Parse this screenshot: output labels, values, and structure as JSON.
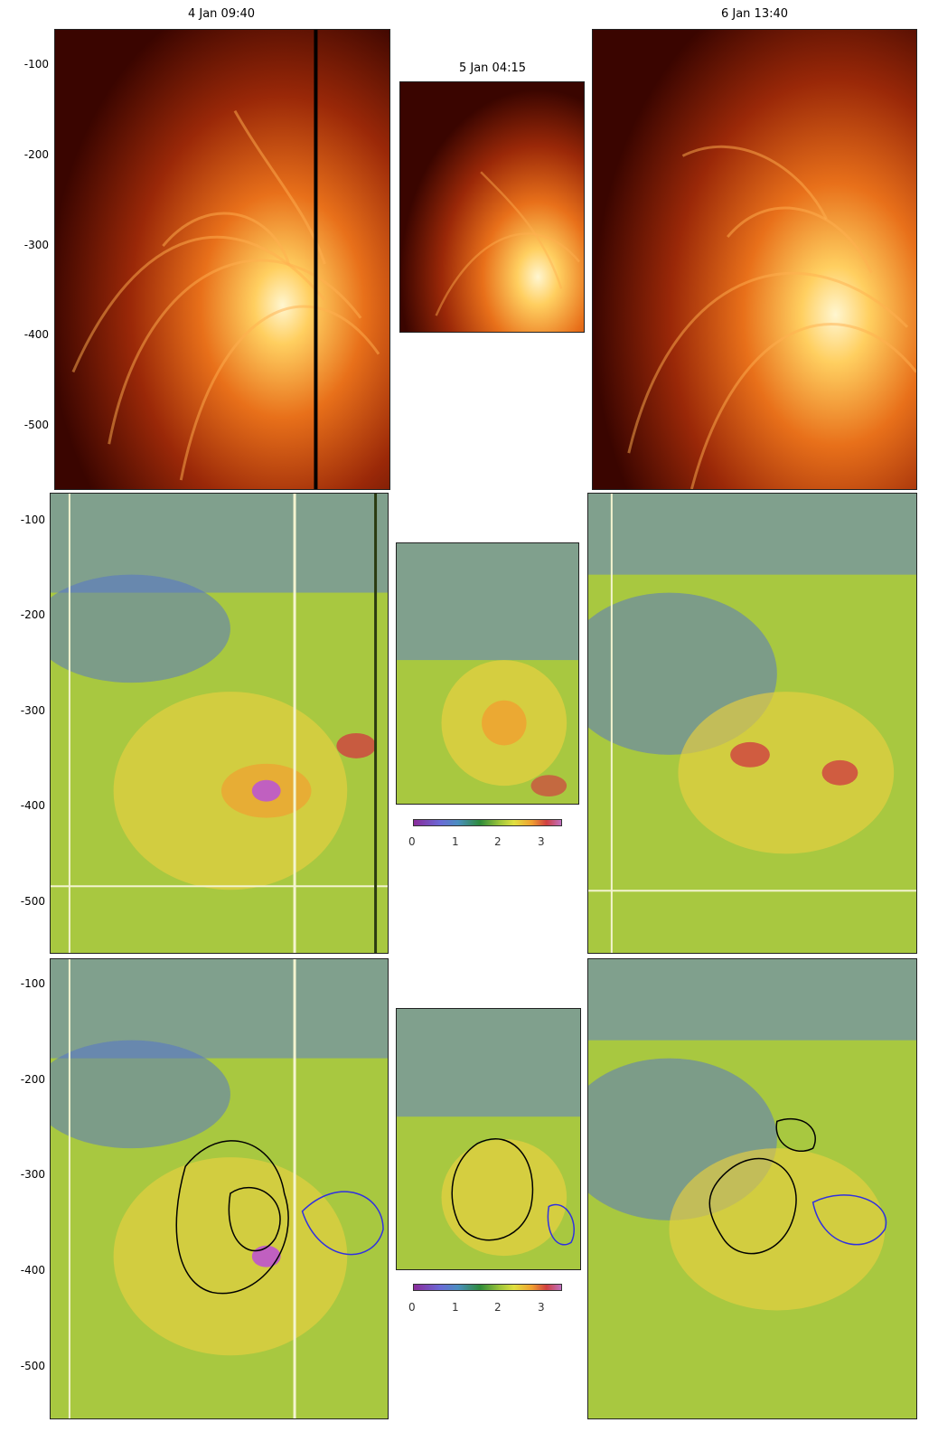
{
  "titles": {
    "left": "4 Jan 09:40",
    "middle": "5 Jan 04:15",
    "right": "6 Jan 13:40"
  },
  "y_ticks": {
    "row1": [
      "-100",
      "-200",
      "-300",
      "-400",
      "-500"
    ],
    "row2": [
      "-100",
      "-200",
      "-300",
      "-400",
      "-500"
    ],
    "row3": [
      "-100",
      "-200",
      "-300",
      "-400",
      "-500"
    ]
  },
  "colorbar_labels": {
    "row2": [
      "0",
      "1",
      "2",
      "3"
    ],
    "row3": [
      "0",
      "1",
      "2",
      "3"
    ]
  },
  "colors": {
    "euv_dark": "#3a0500",
    "euv_mid": "#b83a08",
    "euv_bright": "#ffd070",
    "map_green": "#9bc43a",
    "map_yellow": "#e8e050",
    "map_blue": "#6a6ad6",
    "map_red": "#d04040",
    "contour_black": "#000000",
    "contour_blue": "#3030e0"
  }
}
